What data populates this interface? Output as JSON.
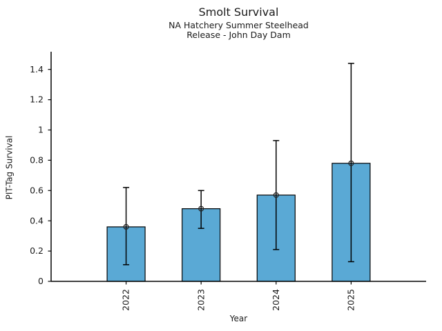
{
  "chart_data": {
    "type": "bar",
    "title": "Smolt Survival",
    "subtitle": [
      "NA Hatchery Summer Steelhead",
      "Release - John Day Dam"
    ],
    "xlabel": "Year",
    "ylabel": "PIT-Tag Survival",
    "categories": [
      "2022",
      "2023",
      "2024",
      "2025"
    ],
    "values": [
      0.36,
      0.48,
      0.57,
      0.78
    ],
    "error_low": [
      0.11,
      0.35,
      0.21,
      0.13
    ],
    "error_high": [
      0.62,
      0.6,
      0.93,
      1.44
    ],
    "ylim": [
      0,
      1.517
    ],
    "yticks": [
      0,
      0.2,
      0.4,
      0.6,
      0.8,
      1,
      1.2,
      1.4
    ],
    "ytick_labels": [
      "0",
      "0.2",
      "0.4",
      "0.6",
      "0.8",
      "1",
      "1.2",
      "1.4"
    ],
    "xtick_label_rotation": 90,
    "grid": false,
    "legend": false,
    "marker": "open-circle",
    "error_bars": "capped",
    "bar_color": "#5AA9D5",
    "bar_edge_color": "#000000",
    "errorbar_color": "#000000",
    "marker_edge_color": "#222222",
    "axis_color": "#000000",
    "text_color": "#1a1a1a"
  }
}
